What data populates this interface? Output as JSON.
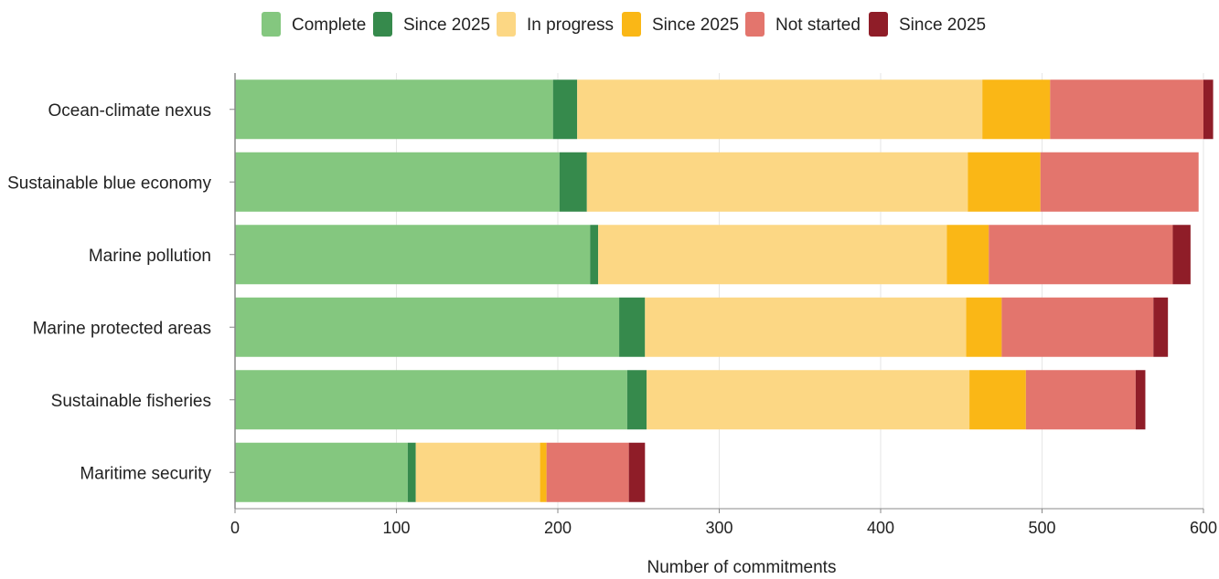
{
  "chart_data": {
    "type": "bar",
    "orientation": "horizontal",
    "stacked": true,
    "xlabel": "Number of commitments",
    "xlim": [
      0,
      600
    ],
    "xticks": [
      0,
      100,
      200,
      300,
      400,
      500,
      600
    ],
    "grid": "vertical",
    "legend_position": "top",
    "categories": [
      "Ocean-climate nexus",
      "Sustainable blue economy",
      "Marine pollution",
      "Marine protected areas",
      "Sustainable fisheries",
      "Maritime security"
    ],
    "series": [
      {
        "name": "Complete",
        "color": "#84c77f",
        "values": [
          197,
          201,
          220,
          238,
          243,
          107
        ]
      },
      {
        "name": "Since 2025",
        "color": "#368a4c",
        "values": [
          15,
          17,
          5,
          16,
          12,
          5
        ]
      },
      {
        "name": "In progress",
        "color": "#fcd784",
        "values": [
          251,
          236,
          216,
          199,
          200,
          77
        ]
      },
      {
        "name": "Since 2025",
        "color": "#fab716",
        "values": [
          42,
          45,
          26,
          22,
          35,
          4
        ]
      },
      {
        "name": "Not started",
        "color": "#e3756d",
        "values": [
          95,
          98,
          114,
          94,
          68,
          51
        ]
      },
      {
        "name": "Since 2025",
        "color": "#8f1d28",
        "values": [
          6,
          0,
          11,
          9,
          6,
          10
        ]
      }
    ]
  }
}
